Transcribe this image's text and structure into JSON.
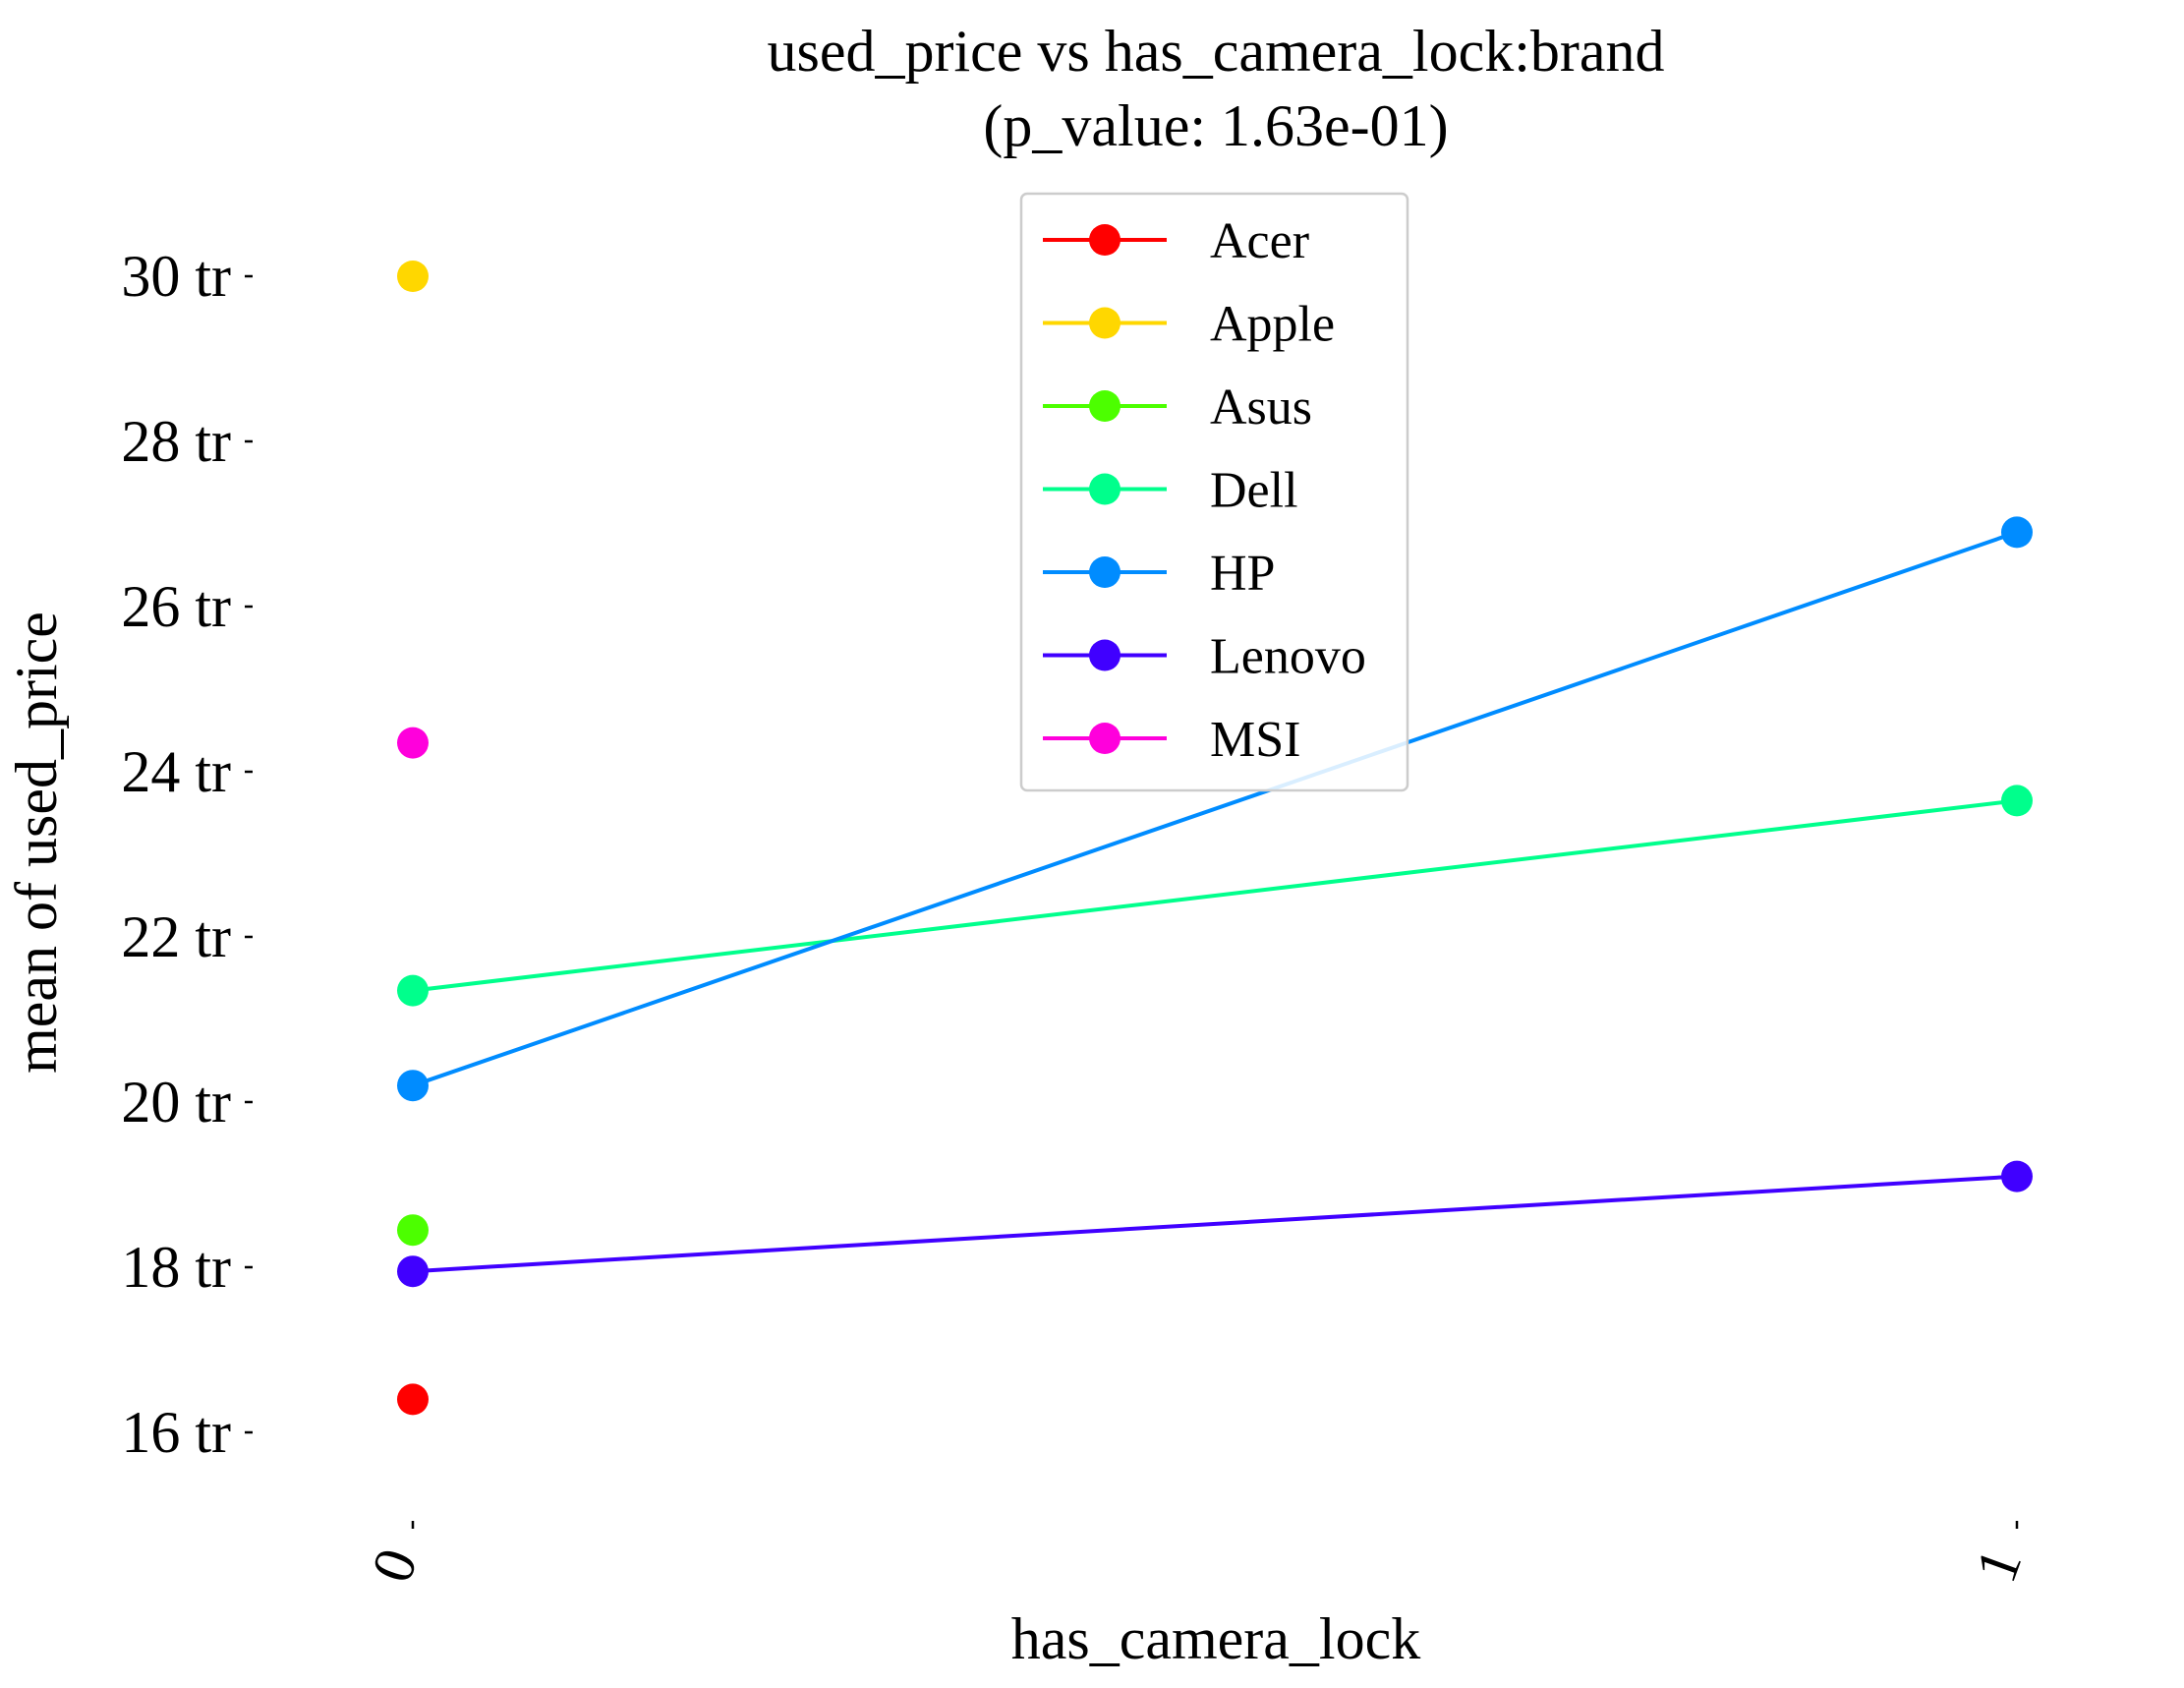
{
  "chart_data": {
    "type": "line",
    "title": "used_price vs has_camera_lock:brand",
    "subtitle": "(p_value: 1.63e-01)",
    "xlabel": "has_camera_lock",
    "ylabel": "mean of used_price",
    "categories": [
      "0",
      "1"
    ],
    "y_unit_suffix": " tr",
    "yticks": [
      16,
      18,
      20,
      22,
      24,
      26,
      28,
      30
    ],
    "ylim": [
      14.9,
      31.2
    ],
    "legend_position": "top-center",
    "grid": false,
    "series": [
      {
        "name": "Acer",
        "color": "#ff0000",
        "values": [
          16.4,
          null
        ]
      },
      {
        "name": "Apple",
        "color": "#ffd700",
        "values": [
          30.0,
          null
        ]
      },
      {
        "name": "Asus",
        "color": "#4cff00",
        "values": [
          18.45,
          null
        ]
      },
      {
        "name": "Dell",
        "color": "#00ff8c",
        "values": [
          21.35,
          23.65
        ]
      },
      {
        "name": "HP",
        "color": "#008cff",
        "values": [
          20.2,
          26.9
        ]
      },
      {
        "name": "Lenovo",
        "color": "#4000ff",
        "values": [
          17.95,
          19.1
        ]
      },
      {
        "name": "MSI",
        "color": "#ff00dc",
        "values": [
          24.35,
          null
        ]
      }
    ]
  }
}
